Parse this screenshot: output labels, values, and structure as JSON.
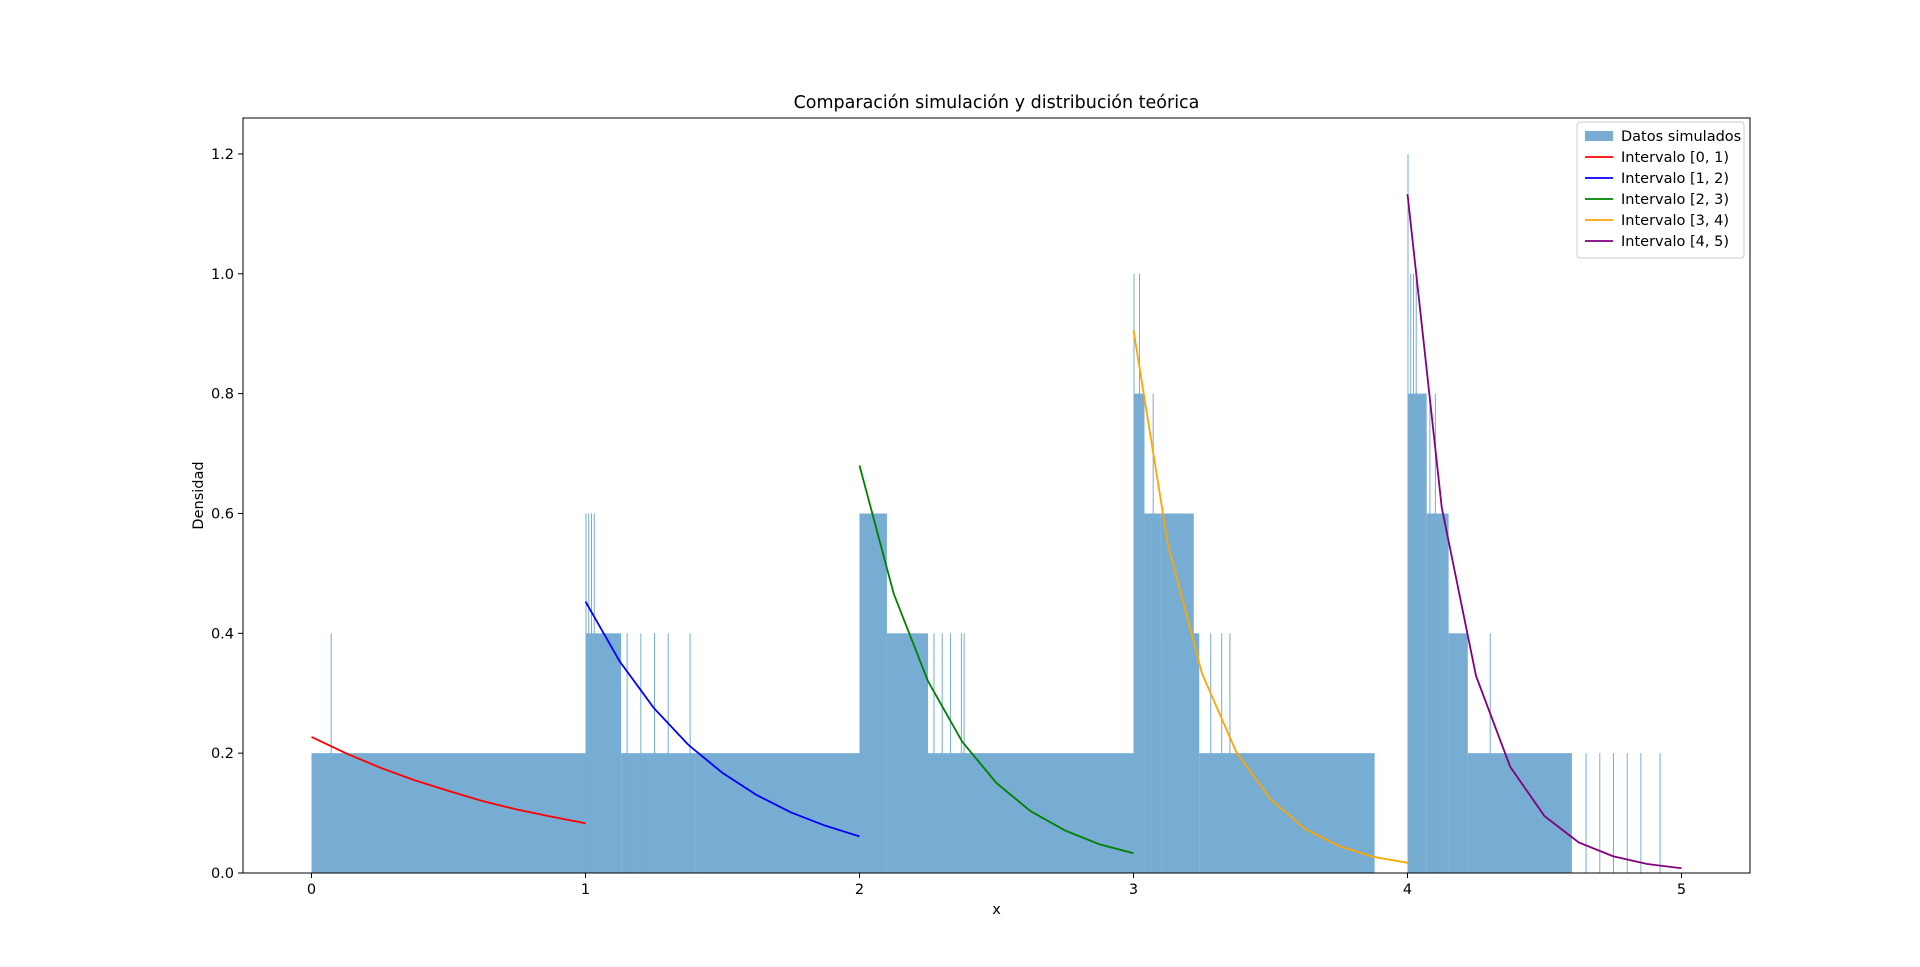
{
  "chart_data": {
    "type": "bar",
    "title": "Comparación simulación y distribución teórica",
    "xlabel": "x",
    "ylabel": "Densidad",
    "xlim": [
      -0.25,
      5.25
    ],
    "ylim": [
      0,
      1.26
    ],
    "xticks": [
      0,
      1,
      2,
      3,
      4,
      5
    ],
    "yticks": [
      0.0,
      0.2,
      0.4,
      0.6,
      0.8,
      1.0,
      1.2
    ],
    "ytick_labels": [
      "0.0",
      "0.2",
      "0.4",
      "0.6",
      "0.8",
      "1.0",
      "1.2"
    ],
    "grid": false,
    "legend_position": "top-right",
    "histogram": {
      "name": "Datos simulados",
      "color": "#77acd3",
      "bin_width": 0.0025,
      "segments": [
        {
          "start": 0.0,
          "end": 1.0,
          "level": 0.2,
          "spikes": [
            [
              0.07,
              0.4
            ]
          ]
        },
        {
          "start": 1.0,
          "end": 1.03,
          "level": 0.4,
          "spikes": [
            [
              1.0,
              0.6
            ],
            [
              1.01,
              0.6
            ],
            [
              1.02,
              0.6
            ],
            [
              1.03,
              0.6
            ]
          ]
        },
        {
          "start": 1.03,
          "end": 1.13,
          "level": 0.4,
          "spikes": []
        },
        {
          "start": 1.13,
          "end": 1.4,
          "level": 0.2,
          "spikes": [
            [
              1.15,
              0.4
            ],
            [
              1.2,
              0.4
            ],
            [
              1.25,
              0.4
            ],
            [
              1.3,
              0.4
            ],
            [
              1.38,
              0.4
            ]
          ]
        },
        {
          "start": 1.4,
          "end": 2.0,
          "level": 0.2,
          "spikes": []
        },
        {
          "start": 2.0,
          "end": 2.1,
          "level": 0.6,
          "spikes": []
        },
        {
          "start": 2.1,
          "end": 2.25,
          "level": 0.4,
          "spikes": [
            [
              2.27,
              0.4
            ],
            [
              2.3,
              0.4
            ],
            [
              2.33,
              0.4
            ],
            [
              2.37,
              0.4
            ],
            [
              2.38,
              0.4
            ]
          ]
        },
        {
          "start": 2.25,
          "end": 3.0,
          "level": 0.2,
          "spikes": [
            [
              2.73,
              0.2
            ],
            [
              2.75,
              0.2
            ]
          ]
        },
        {
          "start": 3.0,
          "end": 3.04,
          "level": 0.8,
          "spikes": [
            [
              3.0,
              1.0
            ],
            [
              3.02,
              1.0
            ]
          ]
        },
        {
          "start": 3.04,
          "end": 3.1,
          "level": 0.6,
          "spikes": [
            [
              3.07,
              0.8
            ]
          ]
        },
        {
          "start": 3.1,
          "end": 3.22,
          "level": 0.6,
          "spikes": []
        },
        {
          "start": 3.1,
          "end": 3.24,
          "level": 0.4,
          "spikes": [
            [
              3.28,
              0.4
            ],
            [
              3.32,
              0.4
            ],
            [
              3.35,
              0.4
            ]
          ]
        },
        {
          "start": 3.24,
          "end": 3.88,
          "level": 0.2,
          "spikes": []
        },
        {
          "start": 4.0,
          "end": 4.07,
          "level": 0.8,
          "spikes": [
            [
              4.0,
              1.2
            ],
            [
              4.01,
              1.0
            ],
            [
              4.02,
              1.0
            ],
            [
              4.03,
              1.0
            ]
          ]
        },
        {
          "start": 4.07,
          "end": 4.15,
          "level": 0.6,
          "spikes": [
            [
              4.08,
              0.8
            ],
            [
              4.1,
              0.8
            ]
          ]
        },
        {
          "start": 4.15,
          "end": 4.22,
          "level": 0.4,
          "spikes": [
            [
              4.3,
              0.4
            ]
          ]
        },
        {
          "start": 4.22,
          "end": 4.6,
          "level": 0.2,
          "spikes": [
            [
              4.65,
              0.2
            ],
            [
              4.7,
              0.2
            ],
            [
              4.75,
              0.2
            ],
            [
              4.8,
              0.2
            ],
            [
              4.85,
              0.2
            ],
            [
              4.92,
              0.2
            ]
          ]
        }
      ]
    },
    "series": [
      {
        "name": "Intervalo [0, 1)",
        "color": "#ff0000",
        "interval": [
          0,
          1
        ],
        "x": [
          0.0,
          0.125,
          0.25,
          0.375,
          0.5,
          0.625,
          0.75,
          0.875,
          1.0
        ],
        "y": [
          0.227,
          0.2,
          0.176,
          0.155,
          0.137,
          0.12,
          0.106,
          0.094,
          0.083
        ]
      },
      {
        "name": "Intervalo [1, 2)",
        "color": "#0000ff",
        "interval": [
          1,
          2
        ],
        "x": [
          1.0,
          1.125,
          1.25,
          1.375,
          1.5,
          1.625,
          1.75,
          1.875,
          2.0
        ],
        "y": [
          0.453,
          0.353,
          0.275,
          0.214,
          0.167,
          0.13,
          0.101,
          0.079,
          0.061
        ]
      },
      {
        "name": "Intervalo [2, 3)",
        "color": "#008000",
        "interval": [
          2,
          3
        ],
        "x": [
          2.0,
          2.125,
          2.25,
          2.375,
          2.5,
          2.625,
          2.75,
          2.875,
          3.0
        ],
        "y": [
          0.68,
          0.466,
          0.32,
          0.219,
          0.15,
          0.103,
          0.071,
          0.048,
          0.033
        ]
      },
      {
        "name": "Intervalo [3, 4)",
        "color": "#ffa500",
        "interval": [
          3,
          4
        ],
        "x": [
          3.0,
          3.125,
          3.25,
          3.375,
          3.5,
          3.625,
          3.75,
          3.875,
          4.0
        ],
        "y": [
          0.906,
          0.55,
          0.333,
          0.202,
          0.123,
          0.074,
          0.045,
          0.027,
          0.017
        ]
      },
      {
        "name": "Intervalo [4, 5)",
        "color": "#800080",
        "interval": [
          4,
          5
        ],
        "x": [
          4.0,
          4.125,
          4.25,
          4.375,
          4.5,
          4.625,
          4.75,
          4.875,
          5.0
        ],
        "y": [
          1.133,
          0.61,
          0.329,
          0.177,
          0.095,
          0.051,
          0.028,
          0.015,
          0.008
        ]
      }
    ]
  }
}
